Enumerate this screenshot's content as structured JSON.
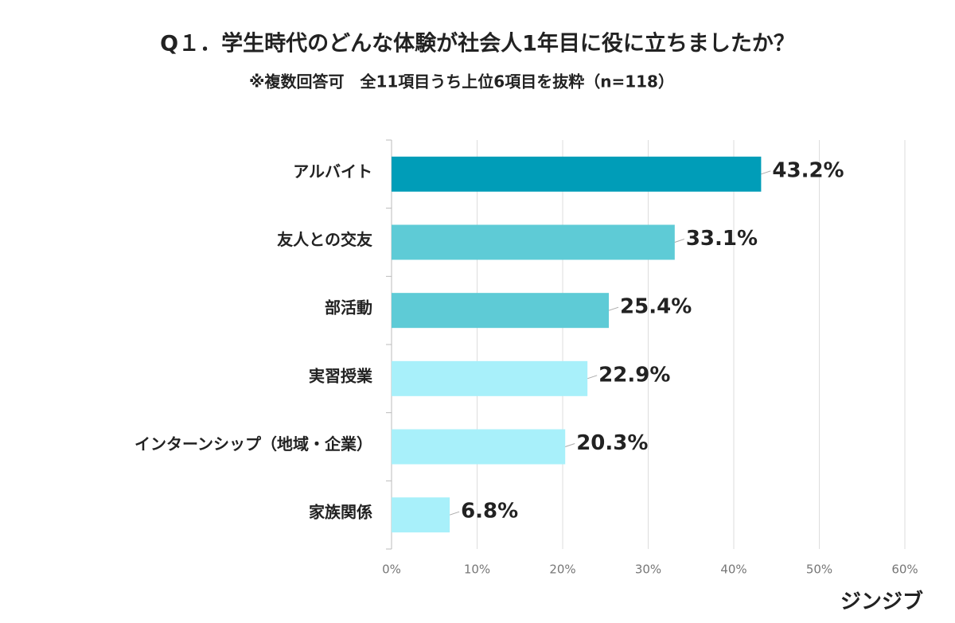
{
  "chart_data": {
    "type": "bar",
    "orientation": "horizontal",
    "title": "Q１．学生時代のどんな体験が社会人1年目に役に立ちましたか？",
    "subtitle": "※複数回答可　全11項目うち上位6項目を抜粋（n=118）",
    "categories": [
      "アルバイト",
      "友人との交友",
      "部活動",
      "実習授業",
      "インターンシップ（地域・企業）",
      "家族関係"
    ],
    "values": [
      43.2,
      33.1,
      25.4,
      22.9,
      20.3,
      6.8
    ],
    "value_labels": [
      "43.2%",
      "33.1%",
      "25.4%",
      "22.9%",
      "20.3%",
      "6.8%"
    ],
    "colors": [
      "#009db8",
      "#5ecbd6",
      "#5ecbd6",
      "#a8f0fa",
      "#a8f0fa",
      "#a8f0fa"
    ],
    "xlim": [
      0,
      60
    ],
    "xticks": [
      {
        "value": 0,
        "label": "0%"
      },
      {
        "value": 10,
        "label": "10%"
      },
      {
        "value": 20,
        "label": "20%"
      },
      {
        "value": 30,
        "label": "30%"
      },
      {
        "value": 40,
        "label": "40%"
      },
      {
        "value": 50,
        "label": "50%"
      },
      {
        "value": 60,
        "label": "60%"
      }
    ],
    "grid": true,
    "brand": "ジンジブ"
  }
}
